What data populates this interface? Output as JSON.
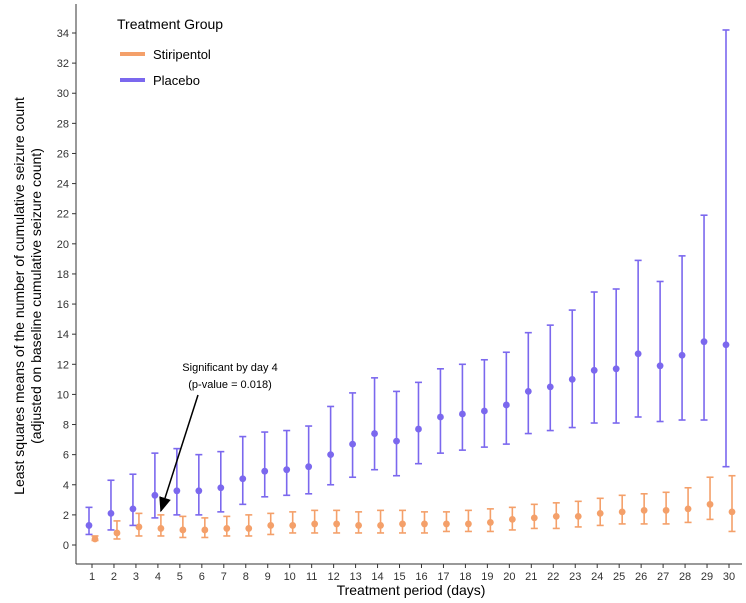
{
  "chart_data": {
    "type": "scatter",
    "title": "",
    "xlabel": "Treatment period (days)",
    "ylabel_line1": "Least squares means of the number of cumulative seizure count",
    "ylabel_line2": "(adjusted on baseline cumulative seizure count)",
    "xlim": [
      1,
      30
    ],
    "ylim": [
      0,
      34
    ],
    "x_ticks": [
      1,
      2,
      3,
      4,
      5,
      6,
      7,
      8,
      9,
      10,
      11,
      12,
      13,
      14,
      15,
      16,
      17,
      18,
      19,
      20,
      21,
      22,
      23,
      24,
      25,
      26,
      27,
      28,
      29,
      30
    ],
    "y_ticks": [
      0,
      2,
      4,
      6,
      8,
      10,
      12,
      14,
      16,
      18,
      20,
      22,
      24,
      26,
      28,
      30,
      32,
      34
    ],
    "legend": {
      "title": "Treatment Group",
      "position": "top-left"
    },
    "series": [
      {
        "name": "Stiripentol",
        "color": "#f4a06a",
        "x": [
          1,
          2,
          3,
          4,
          5,
          6,
          7,
          8,
          9,
          10,
          11,
          12,
          13,
          14,
          15,
          16,
          17,
          18,
          19,
          20,
          21,
          22,
          23,
          24,
          25,
          26,
          27,
          28,
          29,
          30
        ],
        "y": [
          0.4,
          0.8,
          1.2,
          1.1,
          1.0,
          1.0,
          1.1,
          1.1,
          1.3,
          1.3,
          1.4,
          1.4,
          1.3,
          1.3,
          1.4,
          1.4,
          1.4,
          1.4,
          1.5,
          1.7,
          1.8,
          1.9,
          1.9,
          2.1,
          2.2,
          2.3,
          2.3,
          2.4,
          2.7,
          2.2
        ],
        "lower": [
          0.3,
          0.4,
          0.6,
          0.6,
          0.5,
          0.5,
          0.6,
          0.6,
          0.7,
          0.8,
          0.8,
          0.8,
          0.8,
          0.8,
          0.8,
          0.8,
          0.9,
          0.9,
          0.9,
          1.0,
          1.1,
          1.1,
          1.2,
          1.3,
          1.4,
          1.4,
          1.4,
          1.5,
          1.7,
          0.9
        ],
        "upper": [
          0.6,
          1.6,
          2.1,
          2.0,
          1.9,
          1.8,
          1.9,
          2.0,
          2.1,
          2.2,
          2.3,
          2.3,
          2.2,
          2.3,
          2.3,
          2.2,
          2.2,
          2.3,
          2.4,
          2.5,
          2.7,
          2.8,
          2.9,
          3.1,
          3.3,
          3.4,
          3.5,
          3.8,
          4.5,
          4.6
        ]
      },
      {
        "name": "Placebo",
        "color": "#7b68ee",
        "x": [
          1,
          2,
          3,
          4,
          5,
          6,
          7,
          8,
          9,
          10,
          11,
          12,
          13,
          14,
          15,
          16,
          17,
          18,
          19,
          20,
          21,
          22,
          23,
          24,
          25,
          26,
          27,
          28,
          29,
          30
        ],
        "y": [
          1.3,
          2.1,
          2.4,
          3.3,
          3.6,
          3.6,
          3.8,
          4.4,
          4.9,
          5.0,
          5.2,
          6.0,
          6.7,
          7.4,
          6.9,
          7.7,
          8.5,
          8.7,
          8.9,
          9.3,
          10.2,
          10.5,
          11.0,
          11.6,
          11.7,
          12.7,
          11.9,
          12.6,
          13.5,
          13.3
        ],
        "lower": [
          0.7,
          1.0,
          1.3,
          1.8,
          2.0,
          2.0,
          2.2,
          2.7,
          3.2,
          3.3,
          3.4,
          4.0,
          4.5,
          5.0,
          4.6,
          5.4,
          6.1,
          6.3,
          6.5,
          6.7,
          7.4,
          7.6,
          7.8,
          8.1,
          8.1,
          8.5,
          8.2,
          8.3,
          8.3,
          5.2
        ],
        "upper": [
          2.5,
          4.3,
          4.7,
          6.1,
          6.4,
          6.0,
          6.2,
          7.2,
          7.5,
          7.6,
          7.9,
          9.2,
          10.1,
          11.1,
          10.2,
          10.8,
          11.7,
          12.0,
          12.3,
          12.8,
          14.1,
          14.6,
          15.6,
          16.8,
          17.0,
          18.9,
          17.5,
          19.2,
          21.9,
          34.2
        ]
      }
    ],
    "annotation": {
      "line1": "Significant by day 4",
      "line2": "(p-value = 0.018)",
      "target_x": 4,
      "target_y": 2.0
    }
  }
}
